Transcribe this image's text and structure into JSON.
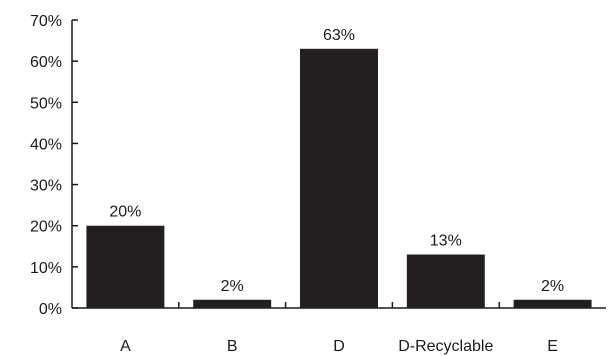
{
  "chart_data": {
    "type": "bar",
    "title": "",
    "xlabel": "",
    "ylabel": "",
    "categories": [
      "A",
      "B",
      "D",
      "D-Recyclable",
      "E"
    ],
    "values": [
      20,
      2,
      63,
      13,
      2
    ],
    "value_labels": [
      "20%",
      "2%",
      "63%",
      "13%",
      "2%"
    ],
    "ylim": [
      0,
      70
    ],
    "yticks": [
      0,
      10,
      20,
      30,
      40,
      50,
      60,
      70
    ],
    "ytick_labels": [
      "0%",
      "10%",
      "20%",
      "30%",
      "40%",
      "50%",
      "60%",
      "70%"
    ],
    "grid": false,
    "legend": "none",
    "bar_color": "#231f20"
  }
}
